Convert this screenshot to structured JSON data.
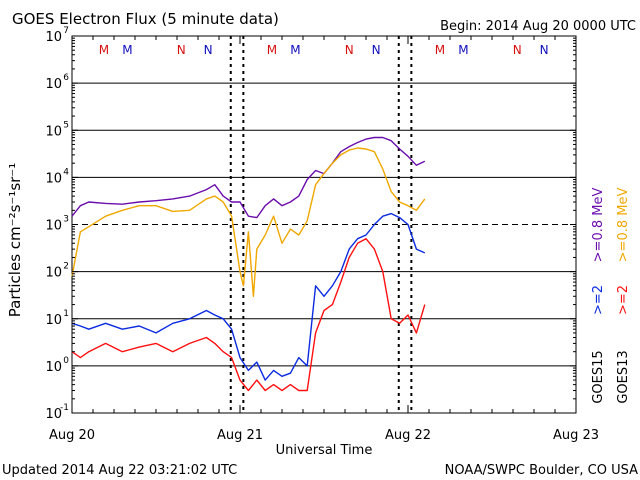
{
  "header": {
    "title": "GOES Electron Flux (5 minute data)",
    "begin": "Begin: 2014 Aug 20 0000 UTC"
  },
  "footer": {
    "updated": "Updated 2014 Aug 22 03:21:02 UTC",
    "credit": "NOAA/SWPC Boulder, CO USA"
  },
  "colors": {
    "purple": "#6a0dad",
    "orange": "#f0a800",
    "blue": "#0a2be0",
    "red": "#ff1010",
    "marker_red": "#d81010",
    "marker_blue": "#1010c0"
  },
  "chart_data": {
    "type": "line",
    "title": "GOES Electron Flux (5 minute data)",
    "xlabel": "Universal Time",
    "ylabel": "Particles cm⁻²s⁻¹sr⁻¹",
    "yscale": "log",
    "ylim": [
      0.1,
      10000000
    ],
    "xlim_days": [
      0,
      3
    ],
    "x_tick_labels": [
      "Aug 20",
      "Aug 21",
      "Aug 22",
      "Aug 23"
    ],
    "y_tick_labels": [
      {
        "base": "10",
        "exp": "-1"
      },
      {
        "base": "10",
        "exp": "0"
      },
      {
        "base": "10",
        "exp": "1"
      },
      {
        "base": "10",
        "exp": "2"
      },
      {
        "base": "10",
        "exp": "3"
      },
      {
        "base": "10",
        "exp": "4"
      },
      {
        "base": "10",
        "exp": "5"
      },
      {
        "base": "10",
        "exp": "6"
      },
      {
        "base": "10",
        "exp": "7"
      }
    ],
    "grid": true,
    "dashed_reference_level": 1000,
    "midnight_dashed_markers_days": [
      0.945,
      1.02,
      1.945,
      2.02
    ],
    "ticks_top_markers": [
      {
        "label": "M",
        "x_day": 0.19,
        "color": "marker_red"
      },
      {
        "label": "M",
        "x_day": 0.33,
        "color": "marker_blue"
      },
      {
        "label": "N",
        "x_day": 0.65,
        "color": "marker_red"
      },
      {
        "label": "N",
        "x_day": 0.81,
        "color": "marker_blue"
      },
      {
        "label": "M",
        "x_day": 1.19,
        "color": "marker_red"
      },
      {
        "label": "M",
        "x_day": 1.33,
        "color": "marker_blue"
      },
      {
        "label": "N",
        "x_day": 1.65,
        "color": "marker_red"
      },
      {
        "label": "N",
        "x_day": 1.81,
        "color": "marker_blue"
      },
      {
        "label": "M",
        "x_day": 2.19,
        "color": "marker_red"
      },
      {
        "label": "M",
        "x_day": 2.33,
        "color": "marker_blue"
      },
      {
        "label": "N",
        "x_day": 2.65,
        "color": "marker_red"
      },
      {
        "label": "N",
        "x_day": 2.81,
        "color": "marker_blue"
      }
    ],
    "legend": [
      {
        "text": ">=0.8 MeV",
        "color": "purple"
      },
      {
        "text": ">=0.8 MeV",
        "color": "orange"
      },
      {
        "text": ">=2",
        "color": "blue"
      },
      {
        "text": ">=2",
        "color": "red"
      },
      {
        "text": "GOES15",
        "color": "black"
      },
      {
        "text": "GOES13",
        "color": "black"
      }
    ],
    "series": [
      {
        "name": "GOES15 >=0.8 MeV",
        "color": "purple",
        "x": [
          0.0,
          0.05,
          0.1,
          0.2,
          0.3,
          0.4,
          0.5,
          0.6,
          0.7,
          0.8,
          0.85,
          0.9,
          0.95,
          1.0,
          1.05,
          1.1,
          1.15,
          1.2,
          1.25,
          1.3,
          1.35,
          1.4,
          1.45,
          1.5,
          1.55,
          1.6,
          1.65,
          1.7,
          1.75,
          1.8,
          1.85,
          1.9,
          1.95,
          2.0,
          2.05,
          2.1
        ],
        "y": [
          1500,
          2500,
          3000,
          2800,
          2700,
          3000,
          3200,
          3500,
          4000,
          5500,
          7000,
          4000,
          3000,
          3000,
          1500,
          1400,
          2500,
          3500,
          2500,
          3000,
          4000,
          9000,
          14000,
          12000,
          20000,
          35000,
          45000,
          55000,
          65000,
          70000,
          70000,
          60000,
          40000,
          28000,
          18000,
          22000
        ]
      },
      {
        "name": "GOES13 >=0.8 MeV",
        "color": "orange",
        "x": [
          0.0,
          0.05,
          0.1,
          0.2,
          0.3,
          0.4,
          0.5,
          0.6,
          0.7,
          0.8,
          0.85,
          0.9,
          0.95,
          1.0,
          1.02,
          1.05,
          1.08,
          1.1,
          1.15,
          1.2,
          1.25,
          1.3,
          1.35,
          1.4,
          1.45,
          1.5,
          1.55,
          1.6,
          1.65,
          1.7,
          1.75,
          1.8,
          1.85,
          1.9,
          1.95,
          2.0,
          2.05,
          2.1
        ],
        "y": [
          80,
          700,
          900,
          1500,
          2000,
          2500,
          2500,
          1900,
          2000,
          3500,
          4000,
          3000,
          1500,
          100,
          50,
          700,
          30,
          300,
          600,
          1500,
          400,
          800,
          600,
          1200,
          7000,
          12000,
          20000,
          30000,
          38000,
          42000,
          40000,
          35000,
          15000,
          5000,
          3000,
          2500,
          2000,
          3500
        ]
      },
      {
        "name": "GOES15 >=2 MeV",
        "color": "blue",
        "x": [
          0.0,
          0.05,
          0.1,
          0.2,
          0.3,
          0.4,
          0.5,
          0.6,
          0.7,
          0.8,
          0.85,
          0.9,
          0.95,
          1.0,
          1.05,
          1.1,
          1.15,
          1.2,
          1.25,
          1.3,
          1.35,
          1.4,
          1.45,
          1.5,
          1.55,
          1.6,
          1.65,
          1.7,
          1.75,
          1.8,
          1.85,
          1.9,
          1.95,
          2.0,
          2.05,
          2.1
        ],
        "y": [
          8,
          7,
          6,
          8,
          6,
          7,
          5,
          8,
          10,
          15,
          12,
          10,
          6,
          1.5,
          0.8,
          1.2,
          0.5,
          0.8,
          0.6,
          0.7,
          1.5,
          1.0,
          50,
          30,
          50,
          100,
          300,
          500,
          600,
          1000,
          1500,
          1700,
          1400,
          1000,
          300,
          250
        ]
      },
      {
        "name": "GOES13 >=2 MeV",
        "color": "red",
        "x": [
          0.0,
          0.05,
          0.1,
          0.2,
          0.3,
          0.4,
          0.5,
          0.6,
          0.7,
          0.8,
          0.85,
          0.9,
          0.95,
          1.0,
          1.05,
          1.1,
          1.15,
          1.2,
          1.25,
          1.3,
          1.35,
          1.4,
          1.45,
          1.5,
          1.55,
          1.6,
          1.65,
          1.7,
          1.75,
          1.8,
          1.85,
          1.9,
          1.95,
          2.0,
          2.05,
          2.1
        ],
        "y": [
          2,
          1.5,
          2,
          3,
          2,
          2.5,
          3,
          2,
          3,
          4,
          3,
          2,
          1.5,
          0.5,
          0.3,
          0.5,
          0.3,
          0.4,
          0.3,
          0.4,
          0.3,
          0.3,
          5,
          15,
          20,
          60,
          200,
          400,
          500,
          300,
          100,
          10,
          8,
          12,
          5,
          20
        ]
      }
    ]
  }
}
